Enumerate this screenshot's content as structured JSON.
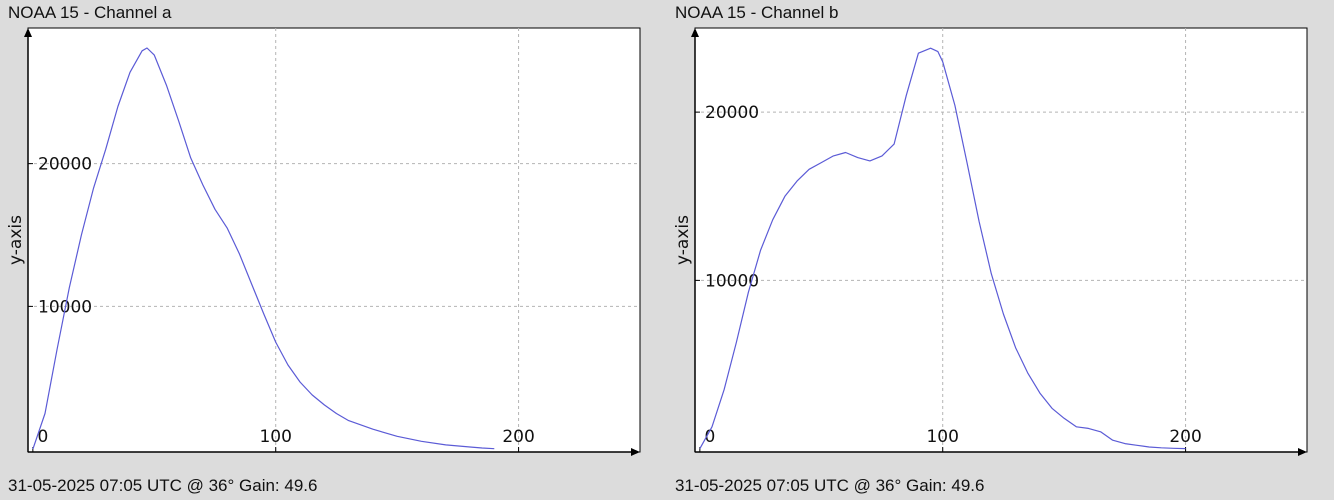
{
  "colors": {
    "background": "#dcdcdc",
    "plot_background": "#ffffff",
    "line": "#5b5bd6",
    "grid": "#b4b4b4",
    "axis": "#000000"
  },
  "panels": [
    {
      "title": "NOAA 15 - Channel a",
      "footer": "31-05-2025 07:05 UTC @ 36° Gain: 49.6"
    },
    {
      "title": "NOAA 15 - Channel b",
      "footer": "31-05-2025 07:05 UTC @ 36° Gain: 49.6"
    }
  ],
  "chart_data": [
    {
      "type": "line",
      "title": "NOAA 15 - Channel a",
      "xlabel": "",
      "ylabel": "y-axis",
      "xlim": [
        -2,
        250
      ],
      "ylim": [
        -200,
        29500
      ],
      "x_ticks": [
        0,
        100,
        200
      ],
      "x_tick_labels": [
        "0",
        "100",
        "200"
      ],
      "y_ticks": [
        10000,
        20000
      ],
      "y_tick_labels": [
        "10000",
        "20000"
      ],
      "grid": true,
      "series": [
        {
          "x": [
            0,
            5,
            10,
            15,
            20,
            25,
            30,
            35,
            40,
            45,
            47,
            50,
            55,
            60,
            65,
            70,
            75,
            80,
            85,
            90,
            95,
            100,
            105,
            110,
            115,
            120,
            125,
            130,
            140,
            150,
            160,
            170,
            180,
            185,
            190
          ],
          "y": [
            0,
            2500,
            7000,
            11300,
            15000,
            18300,
            21000,
            24000,
            26400,
            27900,
            28100,
            27600,
            25500,
            23000,
            20400,
            18500,
            16800,
            15500,
            13700,
            11600,
            9500,
            7500,
            5900,
            4700,
            3800,
            3100,
            2500,
            2000,
            1400,
            900,
            550,
            300,
            150,
            80,
            30
          ]
        }
      ]
    },
    {
      "type": "line",
      "title": "NOAA 15 - Channel b",
      "xlabel": "",
      "ylabel": "y-axis",
      "xlim": [
        -2,
        250
      ],
      "ylim": [
        -200,
        25000
      ],
      "x_ticks": [
        0,
        100,
        200
      ],
      "x_tick_labels": [
        "0",
        "100",
        "200"
      ],
      "y_ticks": [
        10000,
        20000
      ],
      "y_tick_labels": [
        "10000",
        "20000"
      ],
      "grid": true,
      "series": [
        {
          "x": [
            0,
            5,
            10,
            15,
            20,
            25,
            30,
            35,
            40,
            45,
            50,
            55,
            60,
            65,
            70,
            75,
            80,
            85,
            90,
            95,
            98,
            100,
            105,
            110,
            115,
            120,
            125,
            130,
            135,
            140,
            145,
            150,
            155,
            160,
            165,
            170,
            175,
            180,
            185,
            190,
            195,
            200
          ],
          "y": [
            0,
            1300,
            3500,
            6300,
            9300,
            11800,
            13600,
            15000,
            15900,
            16600,
            17000,
            17400,
            17600,
            17300,
            17100,
            17400,
            18100,
            21000,
            23500,
            23800,
            23600,
            23000,
            20400,
            17000,
            13500,
            10400,
            8000,
            6000,
            4500,
            3300,
            2400,
            1800,
            1300,
            1200,
            1000,
            500,
            300,
            200,
            100,
            50,
            20,
            0
          ]
        }
      ]
    }
  ]
}
